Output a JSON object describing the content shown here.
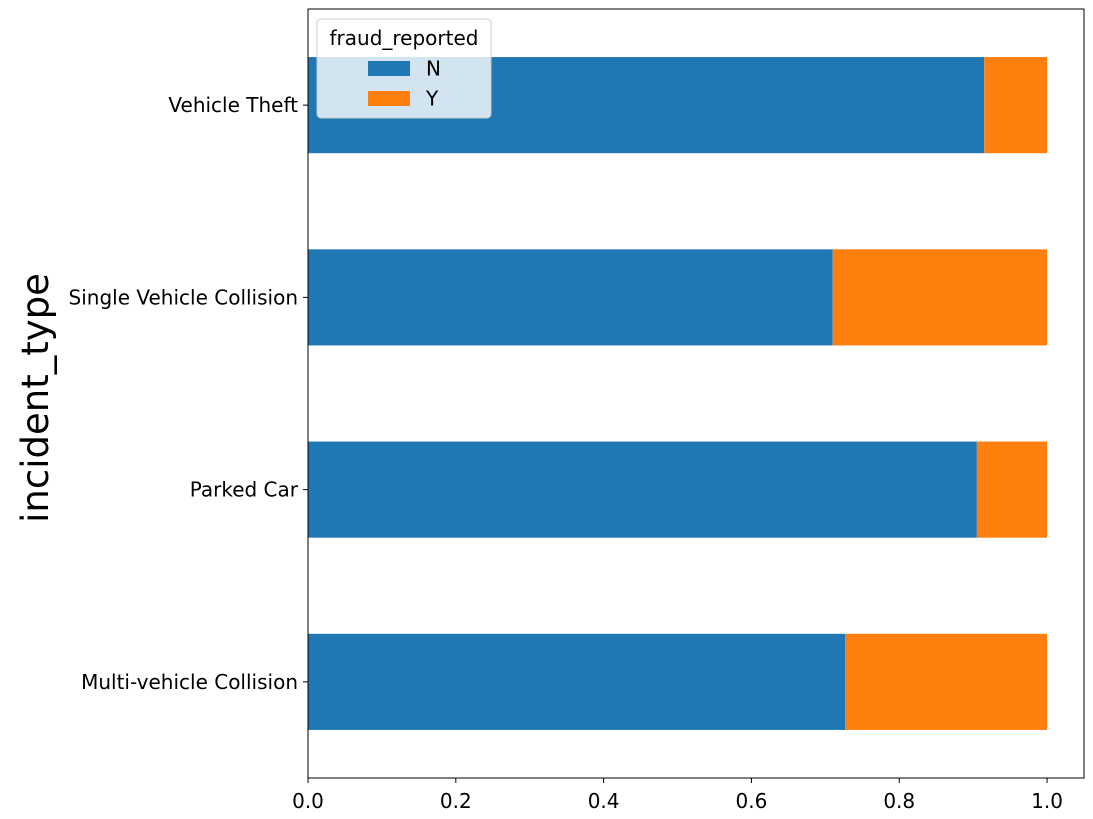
{
  "chart_data": {
    "type": "bar",
    "orientation": "horizontal",
    "stacked": true,
    "title": "",
    "xlabel": "",
    "ylabel": "incident_type",
    "categories": [
      "Multi-vehicle Collision",
      "Parked Car",
      "Single Vehicle Collision",
      "Vehicle Theft"
    ],
    "series": [
      {
        "name": "N",
        "color": "#1f77b4",
        "values": [
          0.727,
          0.905,
          0.71,
          0.915
        ]
      },
      {
        "name": "Y",
        "color": "#ff7f0e",
        "values": [
          0.273,
          0.095,
          0.29,
          0.085
        ]
      }
    ],
    "xlim": [
      0,
      1.05
    ],
    "xticks": [
      0.0,
      0.2,
      0.4,
      0.6,
      0.8,
      1.0
    ],
    "xtick_labels": [
      "0.0",
      "0.2",
      "0.4",
      "0.6",
      "0.8",
      "1.0"
    ],
    "grid": false,
    "legend": {
      "title": "fraud_reported",
      "placement": "top-left"
    }
  }
}
